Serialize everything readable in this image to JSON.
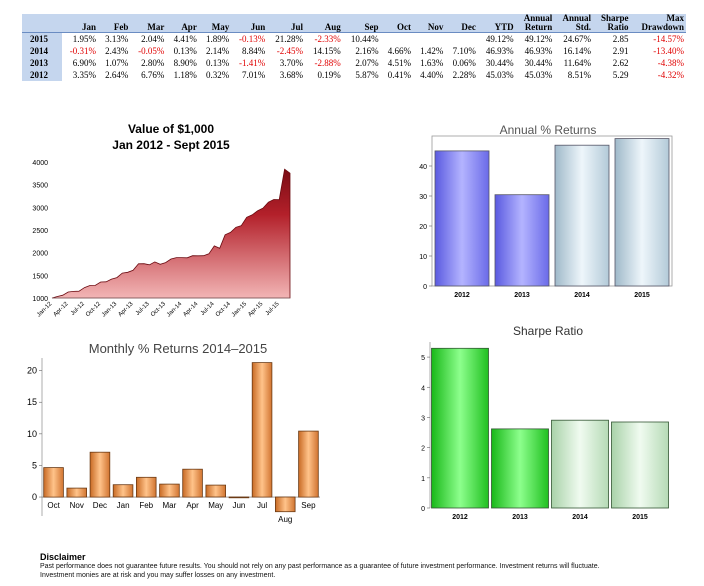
{
  "table": {
    "headers": [
      "",
      "Jan",
      "Feb",
      "Mar",
      "Apr",
      "May",
      "Jun",
      "Jul",
      "Aug",
      "Sep",
      "Oct",
      "Nov",
      "Dec",
      "YTD",
      "Annual Return",
      "Annual Std.",
      "Sharpe Ratio",
      "Max Drawdown"
    ],
    "rows": [
      {
        "year": "2015",
        "cells": [
          "1.95%",
          "3.13%",
          "2.04%",
          "4.41%",
          "1.89%",
          "-0.13%",
          "21.28%",
          "-2.33%",
          "10.44%",
          "",
          "",
          "",
          "49.12%",
          "49.12%",
          "24.67%",
          "2.85",
          "-14.57%"
        ]
      },
      {
        "year": "2014",
        "cells": [
          "-0.31%",
          "2.43%",
          "-0.05%",
          "0.13%",
          "2.14%",
          "8.84%",
          "-2.45%",
          "14.15%",
          "2.16%",
          "4.66%",
          "1.42%",
          "7.10%",
          "46.93%",
          "46.93%",
          "16.14%",
          "2.91",
          "-13.40%"
        ]
      },
      {
        "year": "2013",
        "cells": [
          "6.90%",
          "1.07%",
          "2.80%",
          "8.90%",
          "0.13%",
          "-1.41%",
          "3.70%",
          "-2.88%",
          "2.07%",
          "4.51%",
          "1.63%",
          "0.06%",
          "30.44%",
          "30.44%",
          "11.64%",
          "2.62",
          "-4.38%"
        ]
      },
      {
        "year": "2012",
        "cells": [
          "3.35%",
          "2.64%",
          "6.76%",
          "1.18%",
          "0.32%",
          "7.01%",
          "3.68%",
          "0.19%",
          "5.87%",
          "0.41%",
          "4.40%",
          "2.28%",
          "45.03%",
          "45.03%",
          "8.51%",
          "5.29",
          "-4.32%"
        ]
      }
    ]
  },
  "colors": {
    "table_header_bg": "#c5d6ee",
    "negative": "#e00000",
    "area": "#a8141e",
    "annual_purple": "#8a8af0",
    "annual_light": "#cfe0ec",
    "monthly_orange": "#e8954a",
    "sharpe_green": "#2fd82f",
    "sharpe_light": "#cdeccd"
  },
  "chart_data": [
    {
      "type": "area",
      "title": "Value of $1,000",
      "subtitle": "Jan 2012 - Sept 2015",
      "ylim": [
        1000,
        4000
      ],
      "yticks": [
        1000,
        1500,
        2000,
        2500,
        3000,
        3500,
        4000
      ],
      "xtick_labels": [
        "Jan-12",
        "Apr-12",
        "Jul-12",
        "Oct-12",
        "Jan-13",
        "Apr-13",
        "Jul-13",
        "Oct-13",
        "Jan-14",
        "Apr-14",
        "Jul-14",
        "Oct-14",
        "Jan-15",
        "Apr-15",
        "Jul-15"
      ],
      "x": [
        "2012-01",
        "2012-02",
        "2012-03",
        "2012-04",
        "2012-05",
        "2012-06",
        "2012-07",
        "2012-08",
        "2012-09",
        "2012-10",
        "2012-11",
        "2012-12",
        "2013-01",
        "2013-02",
        "2013-03",
        "2013-04",
        "2013-05",
        "2013-06",
        "2013-07",
        "2013-08",
        "2013-09",
        "2013-10",
        "2013-11",
        "2013-12",
        "2014-01",
        "2014-02",
        "2014-03",
        "2014-04",
        "2014-05",
        "2014-06",
        "2014-07",
        "2014-08",
        "2014-09",
        "2014-10",
        "2014-11",
        "2014-12",
        "2015-01",
        "2015-02",
        "2015-03",
        "2015-04",
        "2015-05",
        "2015-06",
        "2015-07",
        "2015-08",
        "2015-09"
      ],
      "values": [
        1000,
        1034,
        1061,
        1132,
        1146,
        1149,
        1230,
        1275,
        1278,
        1353,
        1358,
        1418,
        1450,
        1550,
        1567,
        1611,
        1754,
        1756,
        1732,
        1796,
        1744,
        1780,
        1861,
        1891,
        1892,
        1886,
        1932,
        1931,
        1934,
        1975,
        2150,
        2097,
        2394,
        2446,
        2560,
        2596,
        2780,
        2834,
        2922,
        2982,
        3113,
        3172,
        3168,
        3842,
        3753
      ]
    },
    {
      "type": "bar",
      "title": "Annual % Returns",
      "categories": [
        "2012",
        "2013",
        "2014",
        "2015"
      ],
      "values": [
        45.03,
        30.44,
        46.93,
        49.12
      ],
      "ylim": [
        0,
        50
      ],
      "yticks": [
        0,
        10,
        20,
        30,
        40
      ]
    },
    {
      "type": "bar",
      "title": "Monthly % Returns 2014–2015",
      "categories": [
        "Oct",
        "Nov",
        "Dec",
        "Jan",
        "Feb",
        "Mar",
        "Apr",
        "May",
        "Jun",
        "Jul",
        "Aug",
        "Sep"
      ],
      "values": [
        4.66,
        1.42,
        7.1,
        1.95,
        3.13,
        2.04,
        4.41,
        1.89,
        -0.13,
        21.28,
        -2.33,
        10.44
      ],
      "ylim": [
        -3,
        22
      ],
      "yticks": [
        0,
        5,
        10,
        15,
        20
      ]
    },
    {
      "type": "bar",
      "title": "Sharpe Ratio",
      "categories": [
        "2012",
        "2013",
        "2014",
        "2015"
      ],
      "values": [
        5.29,
        2.62,
        2.91,
        2.85
      ],
      "ylim": [
        0,
        5.5
      ],
      "yticks": [
        0,
        1,
        2,
        3,
        4,
        5
      ]
    }
  ],
  "disclaimer": {
    "heading": "Disclaimer",
    "line1": "Past performance does not guarantee future results. You should not rely on any past performance as a guarantee of future investment performance. Investment returns will fluctuate.",
    "line2": "Investment monies are at risk and you may suffer losses on any investment."
  }
}
